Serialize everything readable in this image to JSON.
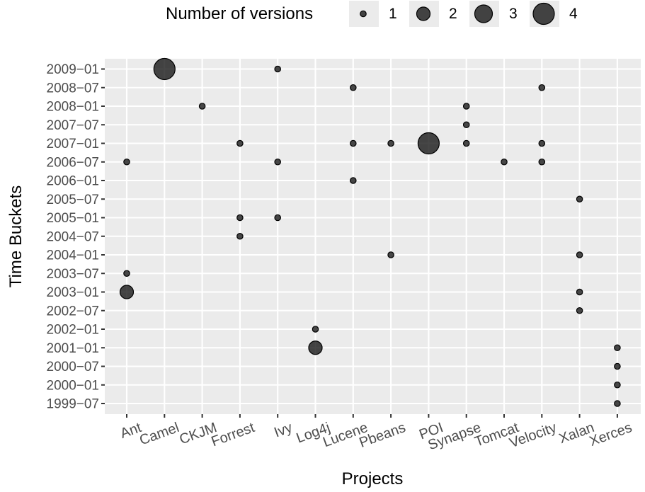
{
  "chart_data": {
    "type": "scatter",
    "xlabel": "Projects",
    "ylabel": "Time Buckets",
    "categories": [
      "Ant",
      "Camel",
      "CKJM",
      "Forrest",
      "Ivy",
      "Log4j",
      "Lucene",
      "Pbeans",
      "POI",
      "Synapse",
      "Tomcat",
      "Velocity",
      "Xalan",
      "Xerces"
    ],
    "y_categories": [
      "1999-07",
      "2000-01",
      "2000-07",
      "2001-01",
      "2002-01",
      "2002-07",
      "2003-01",
      "2003-07",
      "2004-01",
      "2004-07",
      "2005-01",
      "2005-07",
      "2006-01",
      "2006-07",
      "2007-01",
      "2007-07",
      "2008-01",
      "2008-07",
      "2009-01"
    ],
    "legend": {
      "title": "Number of versions",
      "position": "top",
      "entries": [
        "1",
        "2",
        "3",
        "4"
      ]
    },
    "grid": true,
    "points": [
      {
        "x": "Ant",
        "y": "2006-07",
        "size": 1
      },
      {
        "x": "Ant",
        "y": "2003-07",
        "size": 1
      },
      {
        "x": "Ant",
        "y": "2003-01",
        "size": 2
      },
      {
        "x": "Camel",
        "y": "2009-01",
        "size": 4
      },
      {
        "x": "CKJM",
        "y": "2008-01",
        "size": 1
      },
      {
        "x": "Forrest",
        "y": "2007-01",
        "size": 1
      },
      {
        "x": "Forrest",
        "y": "2005-01",
        "size": 1
      },
      {
        "x": "Forrest",
        "y": "2004-07",
        "size": 1
      },
      {
        "x": "Ivy",
        "y": "2009-01",
        "size": 1
      },
      {
        "x": "Ivy",
        "y": "2006-07",
        "size": 1
      },
      {
        "x": "Ivy",
        "y": "2005-01",
        "size": 1
      },
      {
        "x": "Log4j",
        "y": "2002-01",
        "size": 1
      },
      {
        "x": "Log4j",
        "y": "2001-01",
        "size": 2
      },
      {
        "x": "Lucene",
        "y": "2008-07",
        "size": 1
      },
      {
        "x": "Lucene",
        "y": "2007-01",
        "size": 1
      },
      {
        "x": "Lucene",
        "y": "2006-01",
        "size": 1
      },
      {
        "x": "Pbeans",
        "y": "2007-01",
        "size": 1
      },
      {
        "x": "Pbeans",
        "y": "2004-01",
        "size": 1
      },
      {
        "x": "POI",
        "y": "2007-01",
        "size": 4
      },
      {
        "x": "Synapse",
        "y": "2008-01",
        "size": 1
      },
      {
        "x": "Synapse",
        "y": "2007-07",
        "size": 1
      },
      {
        "x": "Synapse",
        "y": "2007-01",
        "size": 1
      },
      {
        "x": "Tomcat",
        "y": "2006-07",
        "size": 1
      },
      {
        "x": "Velocity",
        "y": "2008-07",
        "size": 1
      },
      {
        "x": "Velocity",
        "y": "2007-01",
        "size": 1
      },
      {
        "x": "Velocity",
        "y": "2006-07",
        "size": 1
      },
      {
        "x": "Xalan",
        "y": "2005-07",
        "size": 1
      },
      {
        "x": "Xalan",
        "y": "2004-01",
        "size": 1
      },
      {
        "x": "Xalan",
        "y": "2003-01",
        "size": 1
      },
      {
        "x": "Xalan",
        "y": "2002-07",
        "size": 1
      },
      {
        "x": "Xerces",
        "y": "2001-01",
        "size": 1
      },
      {
        "x": "Xerces",
        "y": "2000-07",
        "size": 1
      },
      {
        "x": "Xerces",
        "y": "2000-01",
        "size": 1
      },
      {
        "x": "Xerces",
        "y": "1999-07",
        "size": 1
      }
    ]
  }
}
